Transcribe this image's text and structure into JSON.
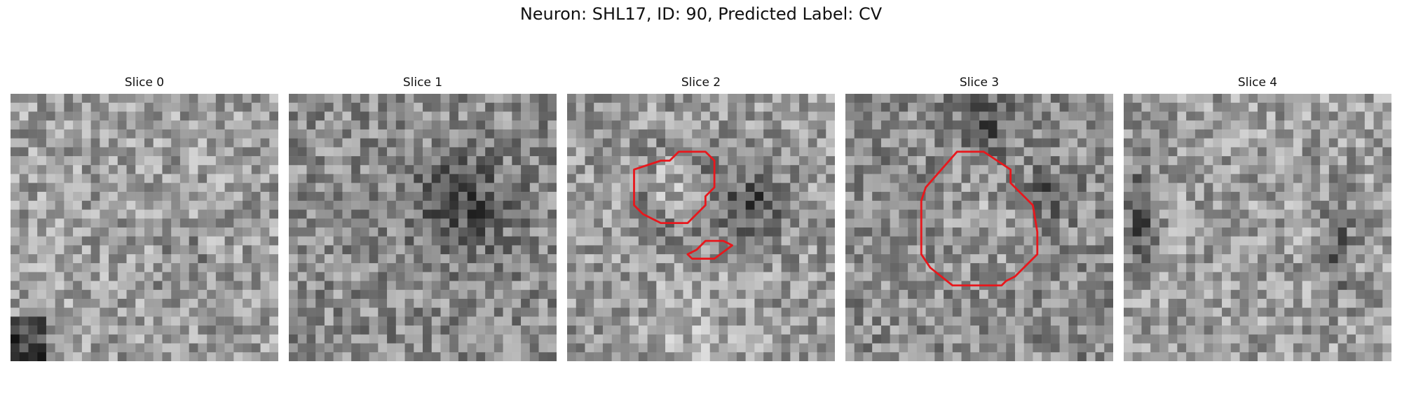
{
  "figure": {
    "title": "Neuron: SHL17, ID: 90, Predicted Label: CV",
    "contour_color": "#e8171c",
    "colormap": "grayscale",
    "grid_size": 30
  },
  "panels": [
    {
      "title": "Slice 0",
      "seed": 11,
      "contours": []
    },
    {
      "title": "Slice 1",
      "seed": 23,
      "contours": []
    },
    {
      "title": "Slice 2",
      "seed": 37,
      "contours": [
        [
          [
            10.5,
            7.5
          ],
          [
            11.5,
            7.5
          ],
          [
            12.5,
            6.5
          ],
          [
            15.5,
            6.5
          ],
          [
            16.5,
            7.5
          ],
          [
            16.5,
            10.5
          ],
          [
            15.5,
            11.5
          ],
          [
            15.5,
            12.5
          ],
          [
            13.5,
            14.5
          ],
          [
            10.5,
            14.5
          ],
          [
            8.5,
            13.5
          ],
          [
            7.5,
            12.5
          ],
          [
            7.5,
            8.5
          ]
        ],
        [
          [
            15.5,
            16.5
          ],
          [
            17.5,
            16.5
          ],
          [
            18.5,
            17
          ],
          [
            16.5,
            18.5
          ],
          [
            14,
            18.5
          ],
          [
            13.5,
            18
          ],
          [
            14.5,
            17.5
          ]
        ]
      ]
    },
    {
      "title": "Slice 3",
      "seed": 53,
      "contours": [
        [
          [
            13.5,
            6.5
          ],
          [
            15.5,
            6.5
          ],
          [
            18.5,
            8.5
          ],
          [
            18.5,
            10
          ],
          [
            19.5,
            11
          ],
          [
            21,
            12.5
          ],
          [
            21.5,
            15.5
          ],
          [
            21.5,
            18
          ],
          [
            20,
            19.5
          ],
          [
            19,
            20.5
          ],
          [
            18,
            21
          ],
          [
            17.5,
            21.5
          ],
          [
            14.5,
            21.5
          ],
          [
            12,
            21.5
          ],
          [
            9.5,
            19.5
          ],
          [
            8.5,
            18
          ],
          [
            8.5,
            15
          ],
          [
            8.5,
            12
          ],
          [
            9,
            10.5
          ],
          [
            12.5,
            6.5
          ]
        ]
      ]
    },
    {
      "title": "Slice 4",
      "seed": 71,
      "contours": []
    }
  ]
}
